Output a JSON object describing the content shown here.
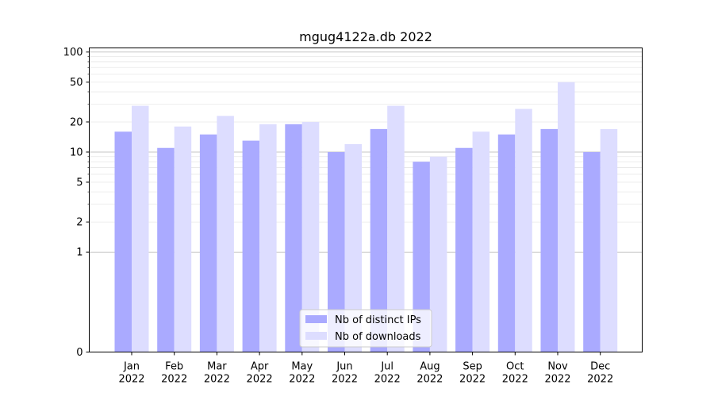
{
  "chart_data": {
    "type": "bar",
    "title": "mgug4122a.db 2022",
    "xlabel": "",
    "ylabel": "",
    "yscale": "symlog",
    "ylim": [
      0,
      110
    ],
    "yticks": [
      0,
      1,
      2,
      5,
      10,
      20,
      50,
      100
    ],
    "categories": [
      [
        "Jan",
        "2022"
      ],
      [
        "Feb",
        "2022"
      ],
      [
        "Mar",
        "2022"
      ],
      [
        "Apr",
        "2022"
      ],
      [
        "May",
        "2022"
      ],
      [
        "Jun",
        "2022"
      ],
      [
        "Jul",
        "2022"
      ],
      [
        "Aug",
        "2022"
      ],
      [
        "Sep",
        "2022"
      ],
      [
        "Oct",
        "2022"
      ],
      [
        "Nov",
        "2022"
      ],
      [
        "Dec",
        "2022"
      ]
    ],
    "series": [
      {
        "name": "Nb of distinct IPs",
        "color": "#aaaaff",
        "values": [
          16,
          11,
          15,
          13,
          19,
          10,
          17,
          8,
          11,
          15,
          17,
          10
        ]
      },
      {
        "name": "Nb of downloads",
        "color": "#ddddff",
        "values": [
          29,
          18,
          23,
          19,
          20,
          12,
          29,
          9,
          16,
          27,
          50,
          17
        ]
      }
    ],
    "legend_position": "bottom-center",
    "grid": true
  }
}
